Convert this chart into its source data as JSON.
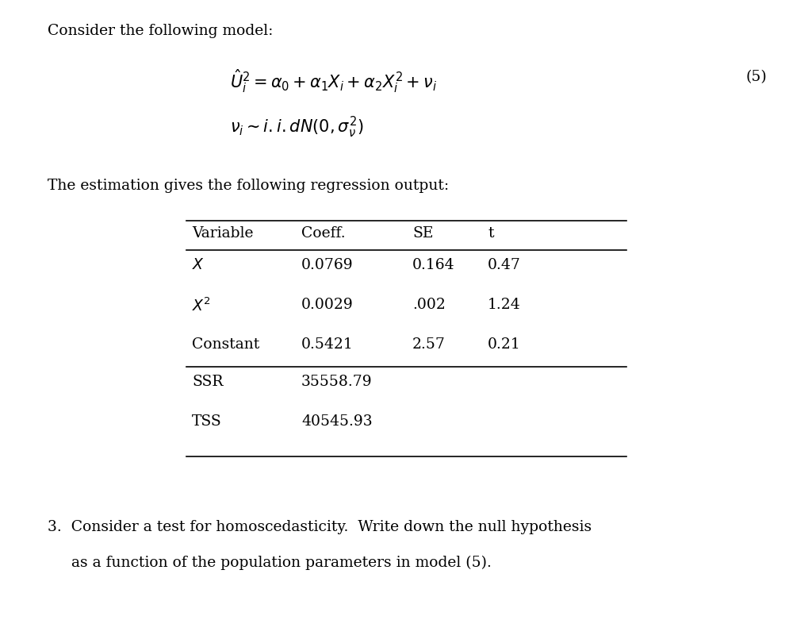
{
  "bg_color": "#ffffff",
  "text_color": "#000000",
  "title_text": "Consider the following model:",
  "equation1": "$\\hat{U}_i^2 = \\alpha_0 + \\alpha_1 X_i + \\alpha_2 X_i^2 + \\nu_i$",
  "equation2": "$\\nu_i \\sim i.i.dN(0, \\sigma_{\\nu}^2)$",
  "eq_number": "(5)",
  "estimation_text": "The estimation gives the following regression output:",
  "table_headers": [
    "Variable",
    "Coeff.",
    "SE",
    "t"
  ],
  "table_rows": [
    [
      "$X$",
      "0.0769",
      "0.164",
      "0.47"
    ],
    [
      "$X^2$",
      "0.0029",
      ".002",
      "1.24"
    ],
    [
      "Constant",
      "0.5421",
      "2.57",
      "0.21"
    ]
  ],
  "ssr_label": "SSR",
  "ssr_value": "35558.79",
  "tss_label": "TSS",
  "tss_value": "40545.93",
  "bottom_text1": "3.  Consider a test for homoscedasticity.  Write down the null hypothesis",
  "bottom_text2": "     as a function of the population parameters in model (5).",
  "font_size_body": 13.5,
  "font_size_eq": 15,
  "font_size_table": 13.5
}
